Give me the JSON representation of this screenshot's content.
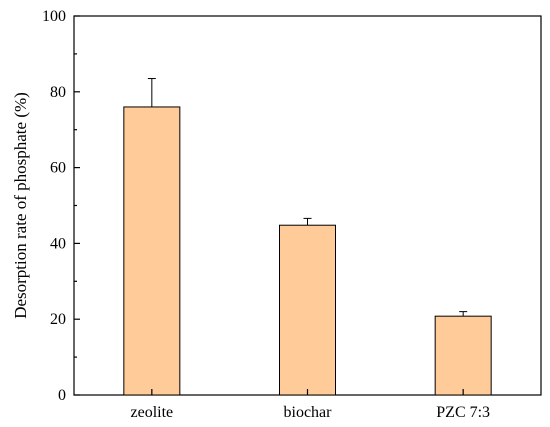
{
  "chart_data": {
    "type": "bar",
    "categories": [
      "zeolite",
      "biochar",
      "PZC 7:3"
    ],
    "values": [
      76,
      44.8,
      20.8
    ],
    "errors": [
      7.5,
      1.8,
      1.2
    ],
    "title": "",
    "xlabel": "",
    "ylabel": "Desorption rate of phosphate (%)",
    "ylim": [
      0,
      100
    ],
    "yticks": [
      "0",
      "20",
      "40",
      "60",
      "80",
      "100"
    ],
    "bar_color": "#FFCC99",
    "grid": false,
    "legend": "none"
  }
}
